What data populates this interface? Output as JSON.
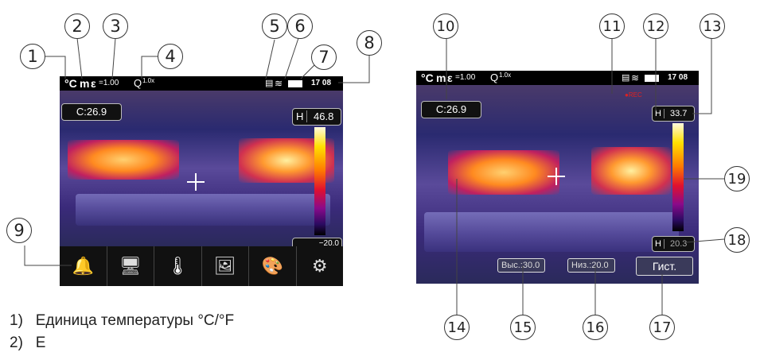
{
  "screen1": {
    "unit": "°C",
    "mode": "m",
    "emissivity_symbol": "ε",
    "emissivity_value": "=1.00",
    "zoom_value": "1.0x",
    "clock": "17 08",
    "center_readout": "C:26.9",
    "high_label": "H",
    "high_value": "46.8",
    "low_value_partial": "−20.0",
    "menu": [
      {
        "name": "alarm-bell-icon",
        "glyph": "🔔"
      },
      {
        "name": "display-icon",
        "glyph": "🖥"
      },
      {
        "name": "thermometer-icon",
        "glyph": "🌡"
      },
      {
        "name": "image-icon",
        "glyph": "🖼"
      },
      {
        "name": "palette-icon",
        "glyph": "🎨"
      },
      {
        "name": "gear-icon",
        "glyph": "⚙"
      }
    ]
  },
  "screen2": {
    "unit": "°C",
    "mode": "m",
    "emissivity_symbol": "ε",
    "emissivity_value": "=1.00",
    "zoom_value": "1.0x",
    "clock": "17 08",
    "rec": "●REC",
    "center_readout": "C:26.9",
    "high_label": "H",
    "high_value": "33.7",
    "low_label": "H",
    "low_value": "20.3",
    "high_limit": "Выс.:30.0",
    "low_limit": "Низ.:20.0",
    "hist_button": "Гист."
  },
  "callouts": [
    "1",
    "2",
    "3",
    "4",
    "5",
    "6",
    "7",
    "8",
    "9",
    "10",
    "11",
    "12",
    "13",
    "14",
    "15",
    "16",
    "17",
    "18",
    "19"
  ],
  "legend": [
    "1)   Единица температуры °C/°F",
    "2)   Е"
  ],
  "colors": {
    "background": "#ffffff",
    "bar": "#000000",
    "rec": "#e02020"
  }
}
